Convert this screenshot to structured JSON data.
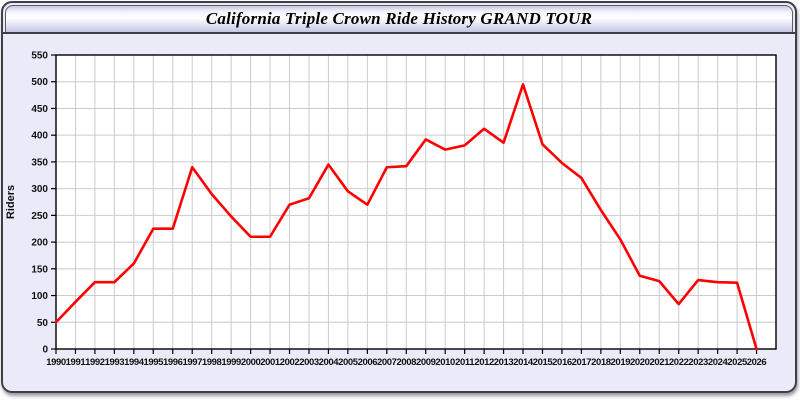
{
  "window": {
    "title": "California Triple Crown Ride History GRAND TOUR"
  },
  "colors": {
    "line": "#ff0000",
    "grid": "#cccccc",
    "plot_bg": "#ffffff",
    "content_bg": "#eaeaf8",
    "axis": "#000000",
    "tick_text": "#111111",
    "window_border": "#3f3f48"
  },
  "chart_data": {
    "type": "line",
    "title": "California Triple Crown Ride History GRAND TOUR",
    "xlabel": "",
    "ylabel": "Riders",
    "x": [
      1990,
      1991,
      1992,
      1993,
      1994,
      1995,
      1996,
      1997,
      1998,
      1999,
      2000,
      2001,
      2002,
      2003,
      2004,
      2005,
      2006,
      2007,
      2008,
      2009,
      2010,
      2011,
      2012,
      2013,
      2014,
      2015,
      2016,
      2017,
      2018,
      2019,
      2020,
      2021,
      2022,
      2023,
      2024,
      2025,
      2026
    ],
    "series": [
      {
        "name": "Riders",
        "values": [
          50,
          88,
          125,
          125,
          160,
          225,
          225,
          340,
          290,
          248,
          210,
          210,
          270,
          282,
          345,
          295,
          270,
          340,
          342,
          392,
          373,
          381,
          412,
          386,
          495,
          383,
          348,
          320,
          260,
          205,
          137,
          127,
          84,
          129,
          125,
          124,
          0
        ]
      }
    ],
    "xlim": [
      1990,
      2027
    ],
    "ylim": [
      0,
      550
    ],
    "ytick_step": 50,
    "grid": true,
    "legend": false
  }
}
